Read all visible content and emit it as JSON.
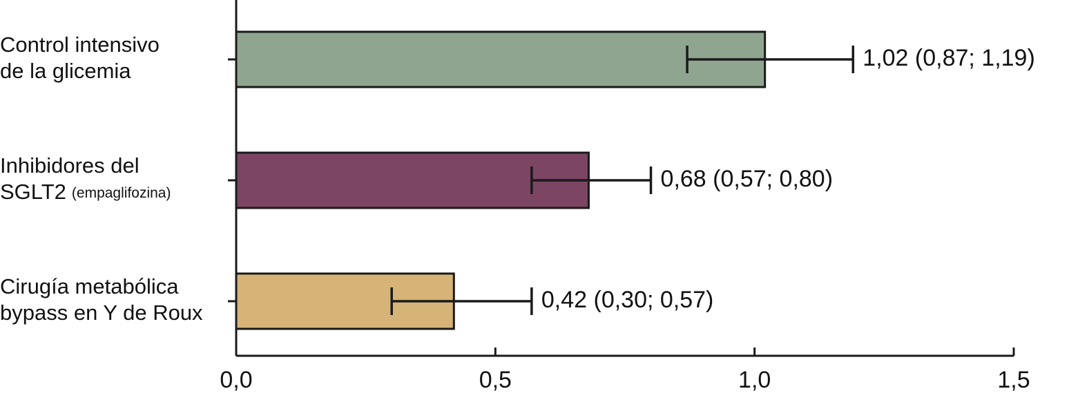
{
  "chart_data": {
    "type": "hbar",
    "categories": [
      [
        [
          "Control intensivo"
        ],
        [
          "de la glicemia"
        ]
      ],
      [
        [
          "Inhibidores del"
        ],
        [
          "SGLT2",
          "(empaglifozina)"
        ]
      ],
      [
        [
          "Cirugía metabólica"
        ],
        [
          "bypass en Y de Roux"
        ]
      ]
    ],
    "values": [
      1.02,
      0.68,
      0.42
    ],
    "ci_low": [
      0.87,
      0.57,
      0.3
    ],
    "ci_high": [
      1.19,
      0.8,
      0.57
    ],
    "value_labels": [
      "1,02 (0,87; 1,19)",
      "0,68 (0,57; 0,80)",
      "0,42 (0,30; 0,57)"
    ],
    "colors": [
      "#8fa58f",
      "#7b4563",
      "#d6b377"
    ],
    "xlim": [
      0,
      1.5
    ],
    "xticks": [
      {
        "value": 0,
        "label": "0,0"
      },
      {
        "value": 0.5,
        "label": "0,5"
      },
      {
        "value": 1,
        "label": "1,0"
      },
      {
        "value": 1.5,
        "label": "1,5"
      }
    ]
  }
}
